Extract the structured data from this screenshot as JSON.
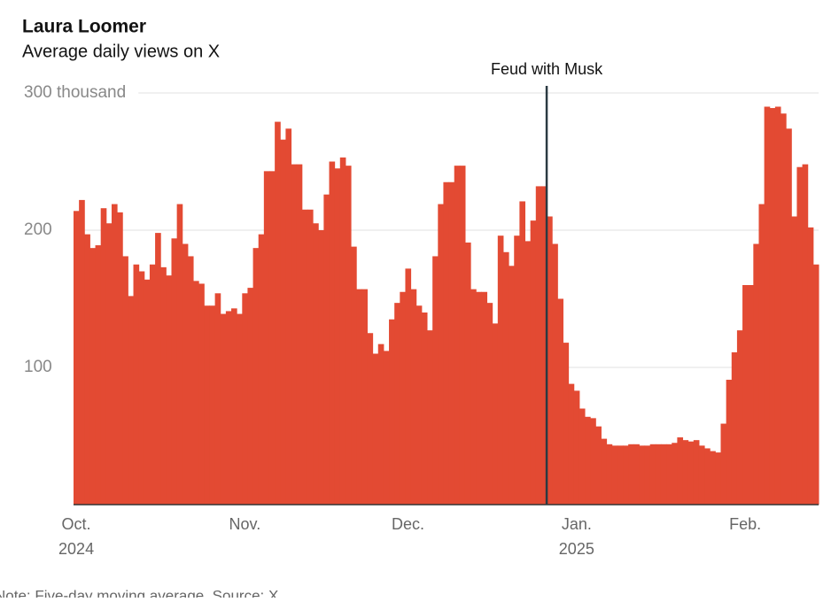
{
  "chart_data": {
    "type": "bar",
    "title": "Laura Loomer",
    "subtitle": "Average daily views on X",
    "note": "Note: Five-day moving average. Source: X",
    "color": "#e34a33",
    "categories": [
      "Oct. 2024",
      null,
      null,
      null,
      null,
      null,
      null,
      null,
      null,
      null,
      null,
      null,
      null,
      null,
      null,
      null,
      null,
      null,
      null,
      null,
      null,
      null,
      null,
      null,
      null,
      null,
      null,
      null,
      null,
      null,
      null,
      "Nov.",
      null,
      null,
      null,
      null,
      null,
      null,
      null,
      null,
      null,
      null,
      null,
      null,
      null,
      null,
      null,
      null,
      null,
      null,
      null,
      null,
      null,
      null,
      null,
      null,
      null,
      null,
      null,
      null,
      null,
      "Dec.",
      null,
      null,
      null,
      null,
      null,
      null,
      null,
      null,
      null,
      null,
      null,
      null,
      null,
      null,
      null,
      null,
      null,
      null,
      null,
      null,
      null,
      null,
      null,
      null,
      null,
      null,
      null,
      null,
      null,
      null,
      "Jan. 2025",
      null,
      null,
      null,
      null,
      null,
      null,
      null,
      null,
      null,
      null,
      null,
      null,
      null,
      null,
      null,
      null,
      null,
      null,
      null,
      null,
      null,
      null,
      null,
      null,
      null,
      null,
      null,
      null,
      null,
      null,
      "Feb.",
      null,
      null,
      null,
      null,
      null,
      null,
      null,
      null,
      null,
      null,
      null,
      null,
      null
    ],
    "values": [
      214,
      222,
      197,
      187,
      189,
      216,
      205,
      219,
      213,
      181,
      152,
      175,
      170,
      164,
      175,
      198,
      173,
      167,
      194,
      219,
      190,
      181,
      163,
      161,
      145,
      145,
      154,
      139,
      141,
      143,
      139,
      154,
      158,
      187,
      197,
      243,
      243,
      279,
      266,
      274,
      248,
      248,
      215,
      215,
      205,
      200,
      226,
      250,
      245,
      253,
      247,
      188,
      157,
      157,
      125,
      110,
      117,
      112,
      135,
      147,
      155,
      172,
      157,
      145,
      140,
      127,
      181,
      219,
      235,
      235,
      247,
      247,
      191,
      157,
      155,
      155,
      147,
      132,
      196,
      184,
      174,
      196,
      221,
      192,
      207,
      232,
      232,
      210,
      190,
      150,
      118,
      88,
      83,
      70,
      64,
      63,
      57,
      48,
      44,
      43,
      43,
      43,
      44,
      44,
      43,
      43,
      44,
      44,
      44,
      44,
      45,
      49,
      47,
      46,
      47,
      43,
      41,
      39,
      38,
      59,
      91,
      111,
      127,
      160,
      160,
      190,
      219,
      290,
      289,
      290,
      285,
      274,
      210,
      246,
      248,
      202,
      175
    ],
    "ylim": [
      0,
      300
    ],
    "yticks": [
      100,
      200,
      {
        "value": 300,
        "label": "300 thousand"
      }
    ],
    "grid": true,
    "annotation": {
      "label": "Feud with Musk",
      "category_index": 87
    }
  }
}
